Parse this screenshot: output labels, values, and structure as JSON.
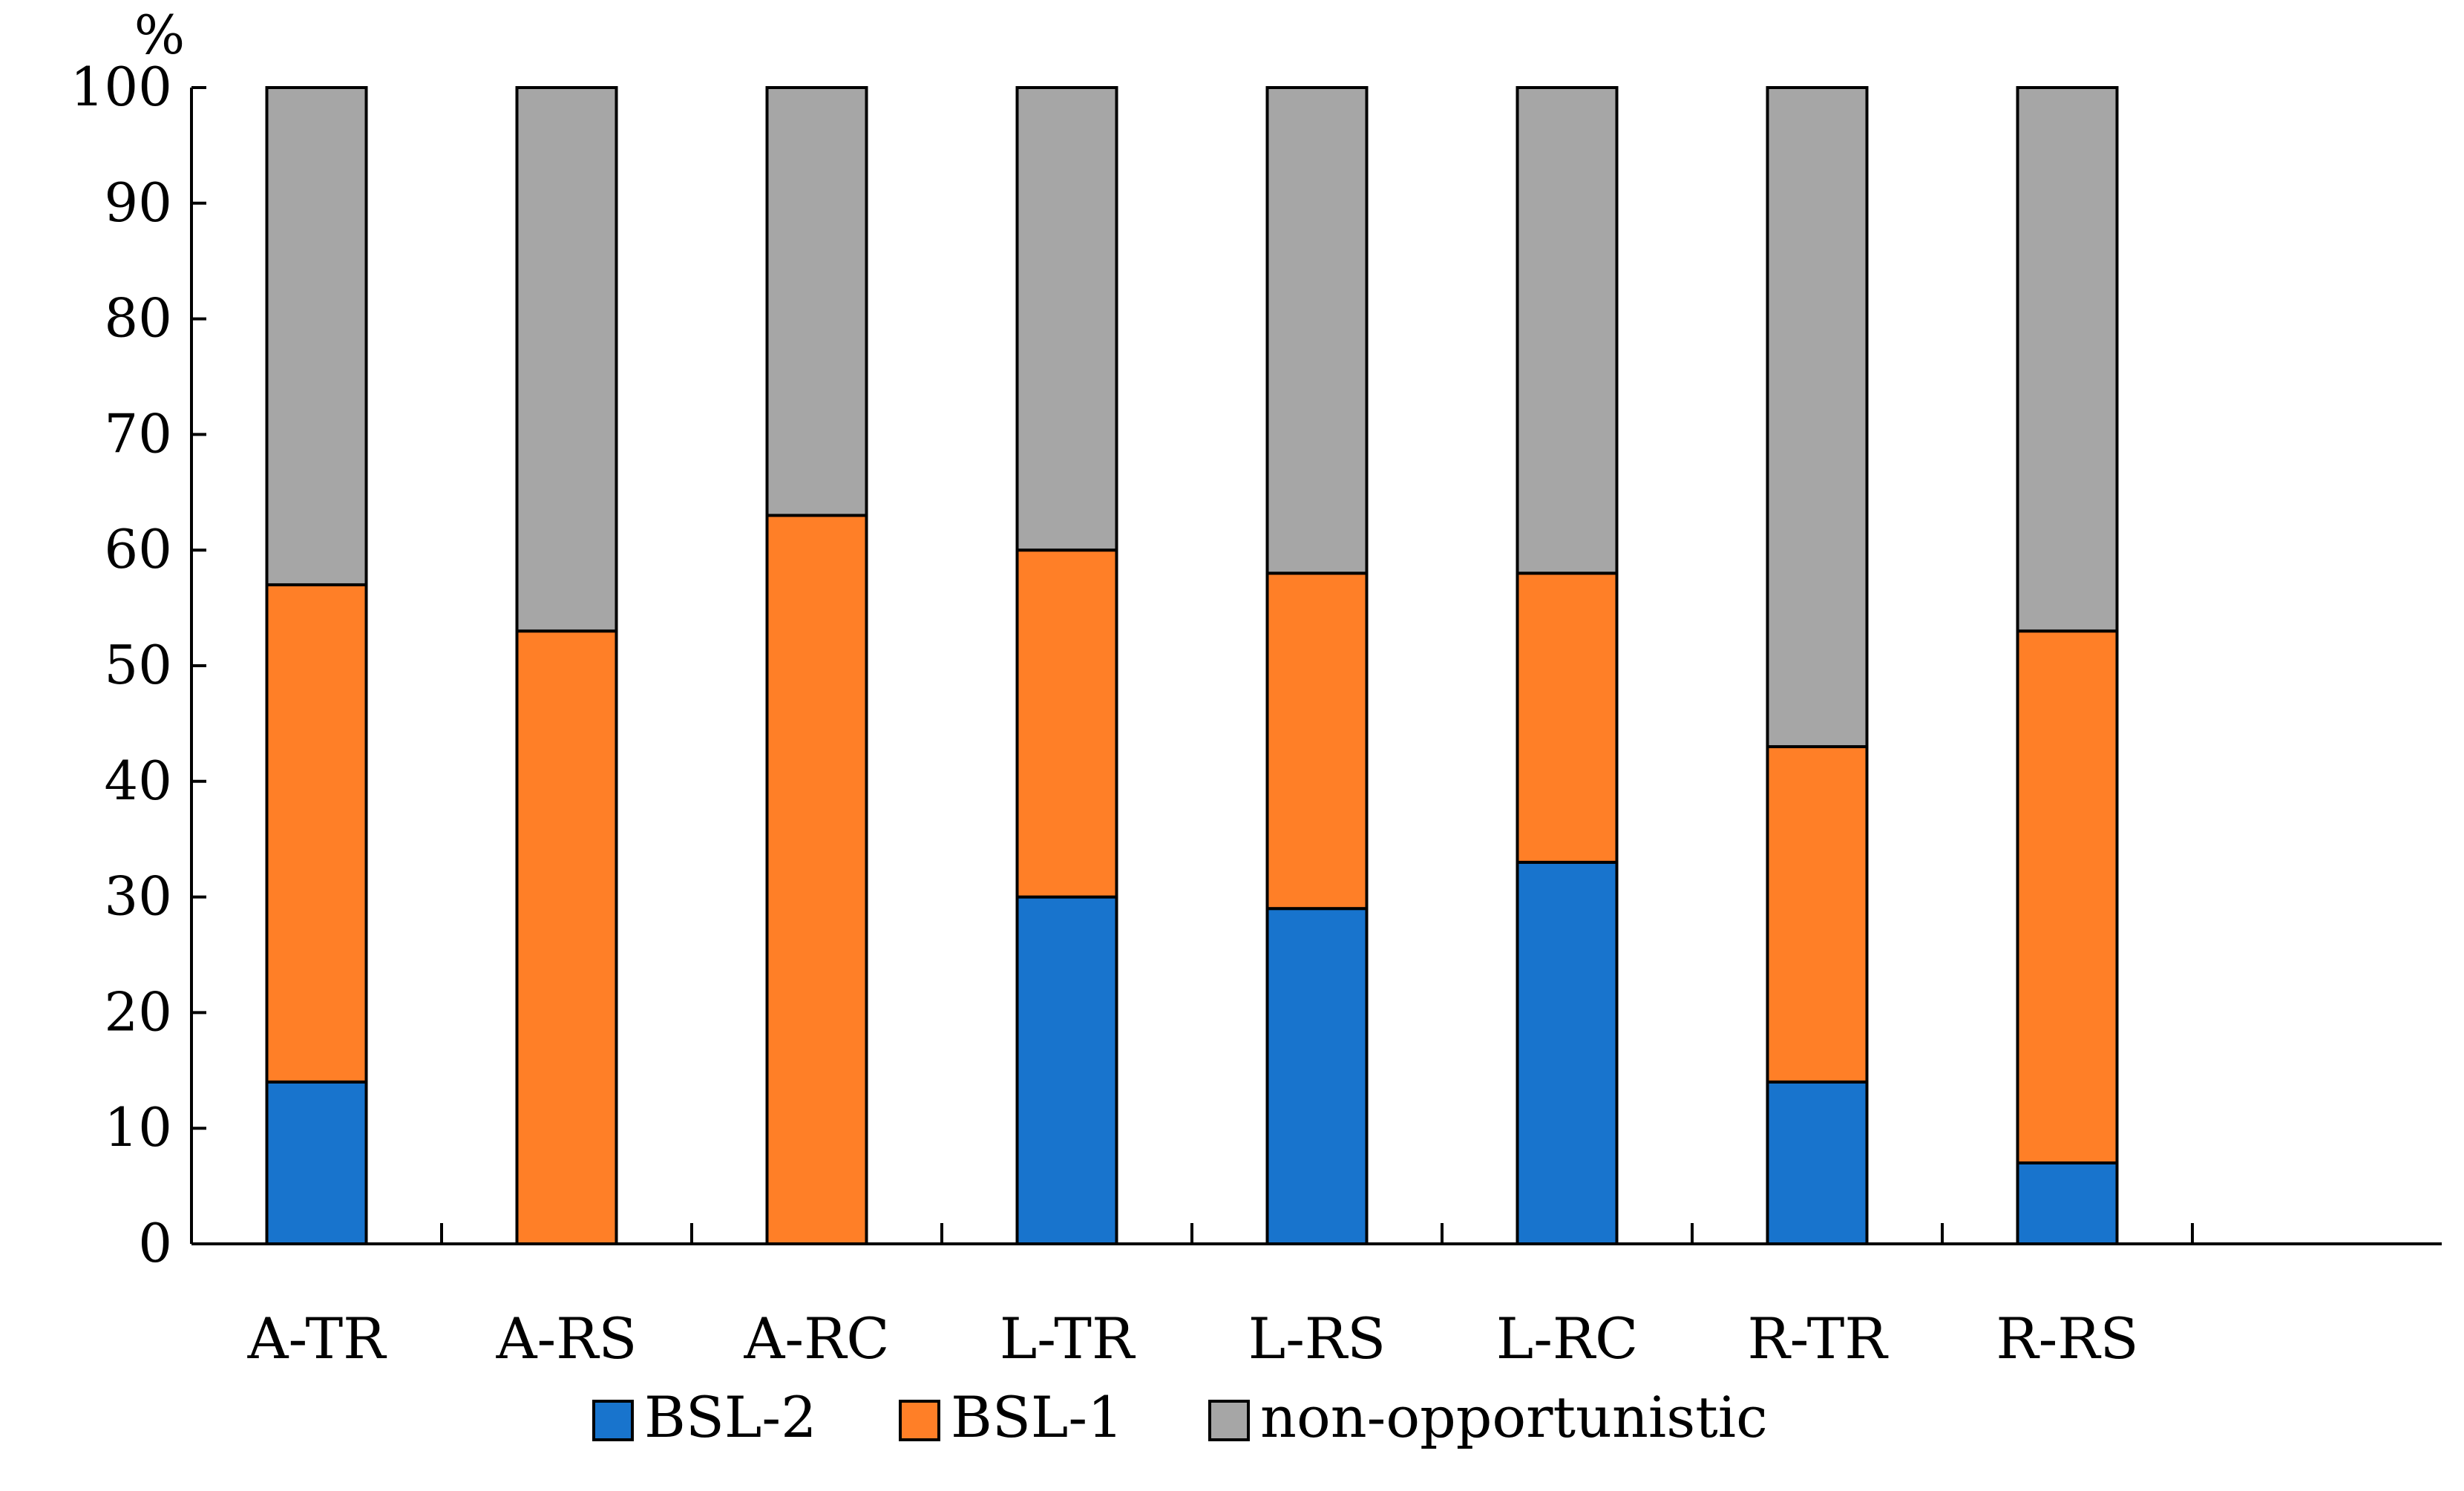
{
  "chart_data": {
    "type": "bar",
    "stacked": true,
    "title": "",
    "xlabel": "",
    "ylabel": "%",
    "ylim": [
      0,
      100
    ],
    "yticks": [
      "0",
      "10",
      "20",
      "30",
      "40",
      "50",
      "60",
      "70",
      "80",
      "90",
      "100"
    ],
    "categories": [
      "A-TR",
      "A-RS",
      "A-RC",
      "L-TR",
      "L-RS",
      "L-RC",
      "R-TR",
      "R-RS"
    ],
    "series": [
      {
        "name": "BSL-2",
        "color": "#1874CD",
        "values": [
          14,
          0,
          0,
          30,
          29,
          33,
          14,
          7
        ]
      },
      {
        "name": "BSL-1",
        "color": "#FF7F27",
        "values": [
          43,
          53,
          63,
          30,
          29,
          25,
          29,
          46
        ]
      },
      {
        "name": "non-opportunistic",
        "color": "#A6A6A6",
        "values": [
          43,
          47,
          37,
          40,
          42,
          42,
          57,
          47
        ]
      }
    ],
    "legend_position": "bottom",
    "grid": false
  }
}
